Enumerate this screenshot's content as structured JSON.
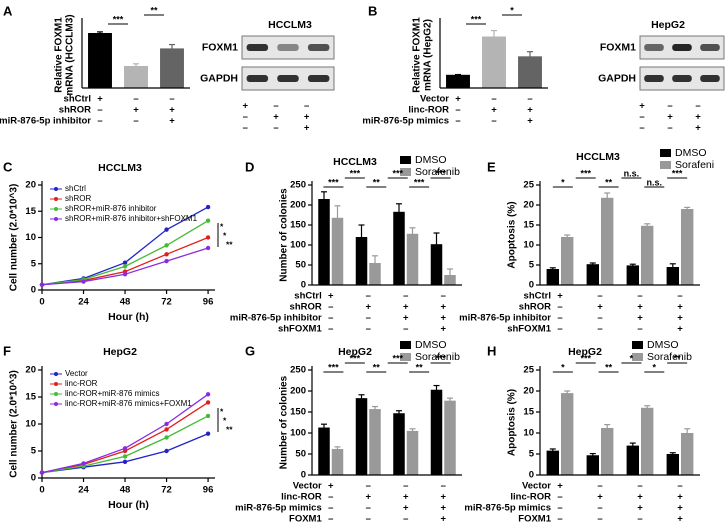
{
  "chart_data": [
    {
      "panel": "A",
      "type": "bar",
      "ylabel": [
        "Relative FOXM1",
        "mRNA (HCCLM3)"
      ],
      "ylim": [
        0,
        1.2
      ],
      "series": [
        {
          "values": [
            1.0,
            0.4,
            0.72
          ],
          "errors": [
            0.02,
            0.04,
            0.07
          ],
          "colors": [
            "#000000",
            "#b4b4b4",
            "#646464"
          ]
        }
      ],
      "conditions": [
        {
          "label": "shCtrl",
          "signs": [
            "+",
            "–",
            "–"
          ]
        },
        {
          "label": "shROR",
          "signs": [
            "–",
            "+",
            "+"
          ]
        },
        {
          "label": "miR-876-5p inhibitor",
          "signs": [
            "–",
            "–",
            "+"
          ]
        }
      ],
      "annotations": [
        "***",
        "**"
      ]
    },
    {
      "panel": "B",
      "type": "bar",
      "ylabel": [
        "Relative FOXM1",
        "mRNA (HepG2)"
      ],
      "ylim": [
        0,
        5
      ],
      "series": [
        {
          "values": [
            1.0,
            3.9,
            2.4
          ],
          "errors": [
            0.02,
            0.45,
            0.35
          ],
          "colors": [
            "#000000",
            "#b4b4b4",
            "#646464"
          ]
        }
      ],
      "conditions": [
        {
          "label": "Vector",
          "signs": [
            "+",
            "–",
            "–"
          ]
        },
        {
          "label": "linc-ROR",
          "signs": [
            "–",
            "+",
            "+"
          ]
        },
        {
          "label": "miR-876-5p mimics",
          "signs": [
            "–",
            "–",
            "+"
          ]
        }
      ],
      "annotations": [
        "***",
        "*"
      ]
    },
    {
      "panel": "C",
      "type": "line",
      "title": "HCCLM3",
      "xlabel": "Hour (h)",
      "ylabel": [
        "Cell number (2.0*10^3)"
      ],
      "x": [
        0,
        24,
        48,
        72,
        96
      ],
      "xlim": [
        0,
        100
      ],
      "xticks": [
        0,
        24,
        48,
        72,
        96
      ],
      "ylim": [
        0,
        20
      ],
      "yticks": [
        0,
        5,
        10,
        15,
        20
      ],
      "series": [
        {
          "name": "shCtrl",
          "color": "#2323c8",
          "values": [
            1,
            2.2,
            5.2,
            11.5,
            15.8
          ]
        },
        {
          "name": "shROR",
          "color": "#e0201b",
          "values": [
            1,
            1.8,
            3.5,
            6.8,
            10
          ]
        },
        {
          "name": "shROR+miR-876 inhibitor",
          "color": "#44bb33",
          "values": [
            1,
            2,
            4.5,
            8.5,
            13.2
          ]
        },
        {
          "name": "shROR+miR-876 inhibitor+shFOXM1",
          "color": "#8a2be2",
          "values": [
            1,
            1.6,
            3,
            5.5,
            8
          ]
        }
      ],
      "annotations": [
        "*",
        "*",
        "**"
      ]
    },
    {
      "panel": "D",
      "type": "bar",
      "title": "HCCLM3",
      "ylabel": [
        "Number of colonies"
      ],
      "ylim": [
        0,
        250
      ],
      "yticks": [
        0,
        50,
        100,
        150,
        200,
        250
      ],
      "series": [
        {
          "name": "DMSO",
          "color": "#000000",
          "values": [
            215,
            120,
            183,
            102
          ],
          "errors": [
            18,
            30,
            20,
            28
          ]
        },
        {
          "name": "Sorafenib",
          "color": "#999999",
          "values": [
            168,
            55,
            128,
            25
          ],
          "errors": [
            30,
            18,
            15,
            15
          ]
        }
      ],
      "conditions": [
        {
          "label": "shCtrl",
          "signs": [
            "+",
            "–",
            "–",
            "–"
          ]
        },
        {
          "label": "shROR",
          "signs": [
            "–",
            "+",
            "+",
            "+"
          ]
        },
        {
          "label": "miR-876-5p inhibitor",
          "signs": [
            "–",
            "–",
            "+",
            "+"
          ]
        },
        {
          "label": "shFOXM1",
          "signs": [
            "–",
            "–",
            "–",
            "+"
          ]
        }
      ],
      "annotations": [
        "***",
        "***",
        "**",
        "***",
        "***",
        "***"
      ]
    },
    {
      "panel": "E",
      "type": "bar",
      "title": "HCCLM3",
      "ylabel": [
        "Apoptosis (%)"
      ],
      "ylim": [
        0,
        25
      ],
      "yticks": [
        0,
        5,
        10,
        15,
        20,
        25
      ],
      "series": [
        {
          "name": "DMSO",
          "color": "#000000",
          "values": [
            4,
            5.2,
            4.9,
            4.5
          ],
          "errors": [
            0.3,
            0.3,
            0.3,
            0.8
          ]
        },
        {
          "name": "Sorafeni",
          "color": "#999999",
          "values": [
            12,
            21.8,
            14.8,
            19
          ],
          "errors": [
            0.5,
            1.2,
            0.5,
            0.4
          ]
        }
      ],
      "conditions": [
        {
          "label": "shCtrl",
          "signs": [
            "+",
            "–",
            "–",
            "–"
          ]
        },
        {
          "label": "shROR",
          "signs": [
            "–",
            "+",
            "+",
            "+"
          ]
        },
        {
          "label": "miR-876-5p inhibitor",
          "signs": [
            "–",
            "–",
            "+",
            "+"
          ]
        },
        {
          "label": "shFOXM1",
          "signs": [
            "–",
            "–",
            "–",
            "+"
          ]
        }
      ],
      "annotations": [
        "*",
        "***",
        "**",
        "n.s.",
        "n.s.",
        "***"
      ]
    },
    {
      "panel": "F",
      "type": "line",
      "title": "HepG2",
      "xlabel": "Hour (h)",
      "ylabel": [
        "Cell number (2.0*10^3)"
      ],
      "x": [
        0,
        24,
        48,
        72,
        96
      ],
      "xlim": [
        0,
        100
      ],
      "xticks": [
        0,
        24,
        48,
        72,
        96
      ],
      "ylim": [
        0,
        20
      ],
      "yticks": [
        0,
        5,
        10,
        15,
        20
      ],
      "series": [
        {
          "name": "Vector",
          "color": "#2323c8",
          "values": [
            1,
            2,
            3,
            5,
            8.2
          ]
        },
        {
          "name": "linc-ROR",
          "color": "#e0201b",
          "values": [
            1,
            2.5,
            5,
            9,
            14
          ]
        },
        {
          "name": "linc-ROR+miR-876 mimics",
          "color": "#44bb33",
          "values": [
            1,
            2.2,
            4,
            7.5,
            11.5
          ]
        },
        {
          "name": "linc-ROR+miR-876 mimics+FOXM1",
          "color": "#8a2be2",
          "values": [
            1,
            2.7,
            5.5,
            10,
            15.5
          ]
        }
      ],
      "annotations": [
        "*",
        "*",
        "**"
      ]
    },
    {
      "panel": "G",
      "type": "bar",
      "title": "HepG2",
      "ylabel": [
        "Number of colonies"
      ],
      "ylim": [
        0,
        250
      ],
      "yticks": [
        0,
        50,
        100,
        150,
        200,
        250
      ],
      "series": [
        {
          "name": "DMSO",
          "color": "#000000",
          "values": [
            113,
            183,
            147,
            203
          ],
          "errors": [
            8,
            8,
            6,
            10
          ]
        },
        {
          "name": "Sorafenib",
          "color": "#999999",
          "values": [
            62,
            157,
            105,
            177
          ],
          "errors": [
            5,
            6,
            5,
            6
          ]
        }
      ],
      "conditions": [
        {
          "label": "Vector",
          "signs": [
            "+",
            "–",
            "–",
            "–"
          ]
        },
        {
          "label": "linc-ROR",
          "signs": [
            "–",
            "+",
            "+",
            "+"
          ]
        },
        {
          "label": "miR-876-5p mimics",
          "signs": [
            "–",
            "–",
            "+",
            "+"
          ]
        },
        {
          "label": "FOXM1",
          "signs": [
            "–",
            "–",
            "–",
            "+"
          ]
        }
      ],
      "annotations": [
        "***",
        "***",
        "**",
        "***",
        "**",
        "***"
      ]
    },
    {
      "panel": "H",
      "type": "bar",
      "title": "HepG2",
      "ylabel": [
        "Apoptosis (%)"
      ],
      "ylim": [
        0,
        25
      ],
      "yticks": [
        0,
        5,
        10,
        15,
        20,
        25
      ],
      "series": [
        {
          "name": "DMSO",
          "color": "#000000",
          "values": [
            5.8,
            4.7,
            7,
            5
          ],
          "errors": [
            0.4,
            0.4,
            0.6,
            0.3
          ]
        },
        {
          "name": "Sorafenib",
          "color": "#999999",
          "values": [
            19.5,
            11.2,
            16,
            10
          ],
          "errors": [
            0.5,
            0.8,
            0.5,
            1
          ]
        }
      ],
      "conditions": [
        {
          "label": "Vector",
          "signs": [
            "+",
            "–",
            "–",
            "–"
          ]
        },
        {
          "label": "linc-ROR",
          "signs": [
            "–",
            "+",
            "+",
            "+"
          ]
        },
        {
          "label": "miR-876-5p mimics",
          "signs": [
            "–",
            "–",
            "+",
            "+"
          ]
        },
        {
          "label": "FOXM1",
          "signs": [
            "–",
            "–",
            "–",
            "+"
          ]
        }
      ],
      "annotations": [
        "*",
        "***",
        "**",
        "*",
        "*",
        "**"
      ]
    }
  ],
  "blots": [
    {
      "title": "HCCLM3",
      "rows": [
        "FOXM1",
        "GAPDH"
      ],
      "conditions": [
        [
          "+",
          "–",
          "–"
        ],
        [
          "–",
          "+",
          "+"
        ],
        [
          "–",
          "–",
          "+"
        ]
      ]
    },
    {
      "title": "HepG2",
      "rows": [
        "FOXM1",
        "GAPDH"
      ],
      "conditions": [
        [
          "+",
          "–",
          "–"
        ],
        [
          "–",
          "+",
          "+"
        ],
        [
          "–",
          "–",
          "+"
        ]
      ]
    }
  ]
}
